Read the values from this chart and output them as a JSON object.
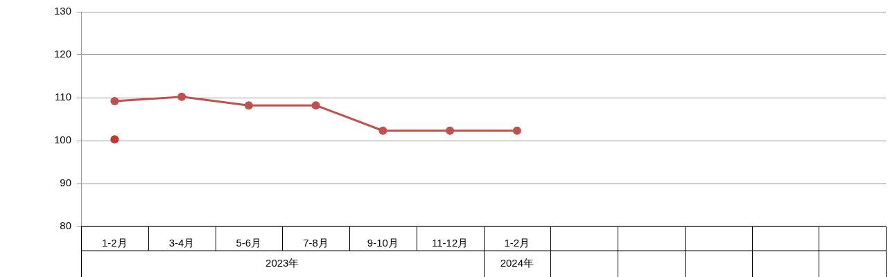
{
  "chart_data": {
    "type": "line",
    "categories": [
      "1-2月",
      "3-4月",
      "5-6月",
      "7-8月",
      "9-10月",
      "11-12月",
      "1-2月",
      null,
      null,
      null,
      null,
      null
    ],
    "series": [
      {
        "color": "#c0504d",
        "values": [
          109.2,
          110.2,
          108.2,
          108.2,
          102.3,
          102.3,
          102.3,
          null,
          null,
          null,
          null,
          null
        ]
      },
      {
        "type": "scatter",
        "color": "#c0392b",
        "values": [
          100.3,
          null,
          null,
          null,
          null,
          null,
          null,
          null,
          null,
          null,
          null,
          null
        ]
      }
    ],
    "annotations": [
      "2023年",
      "2024年"
    ],
    "ylim": [
      80,
      130
    ],
    "yticks": [
      80,
      90,
      100,
      110,
      120,
      130
    ],
    "grid": "y",
    "legend": false,
    "marker": "circle",
    "line_style": "solid"
  }
}
